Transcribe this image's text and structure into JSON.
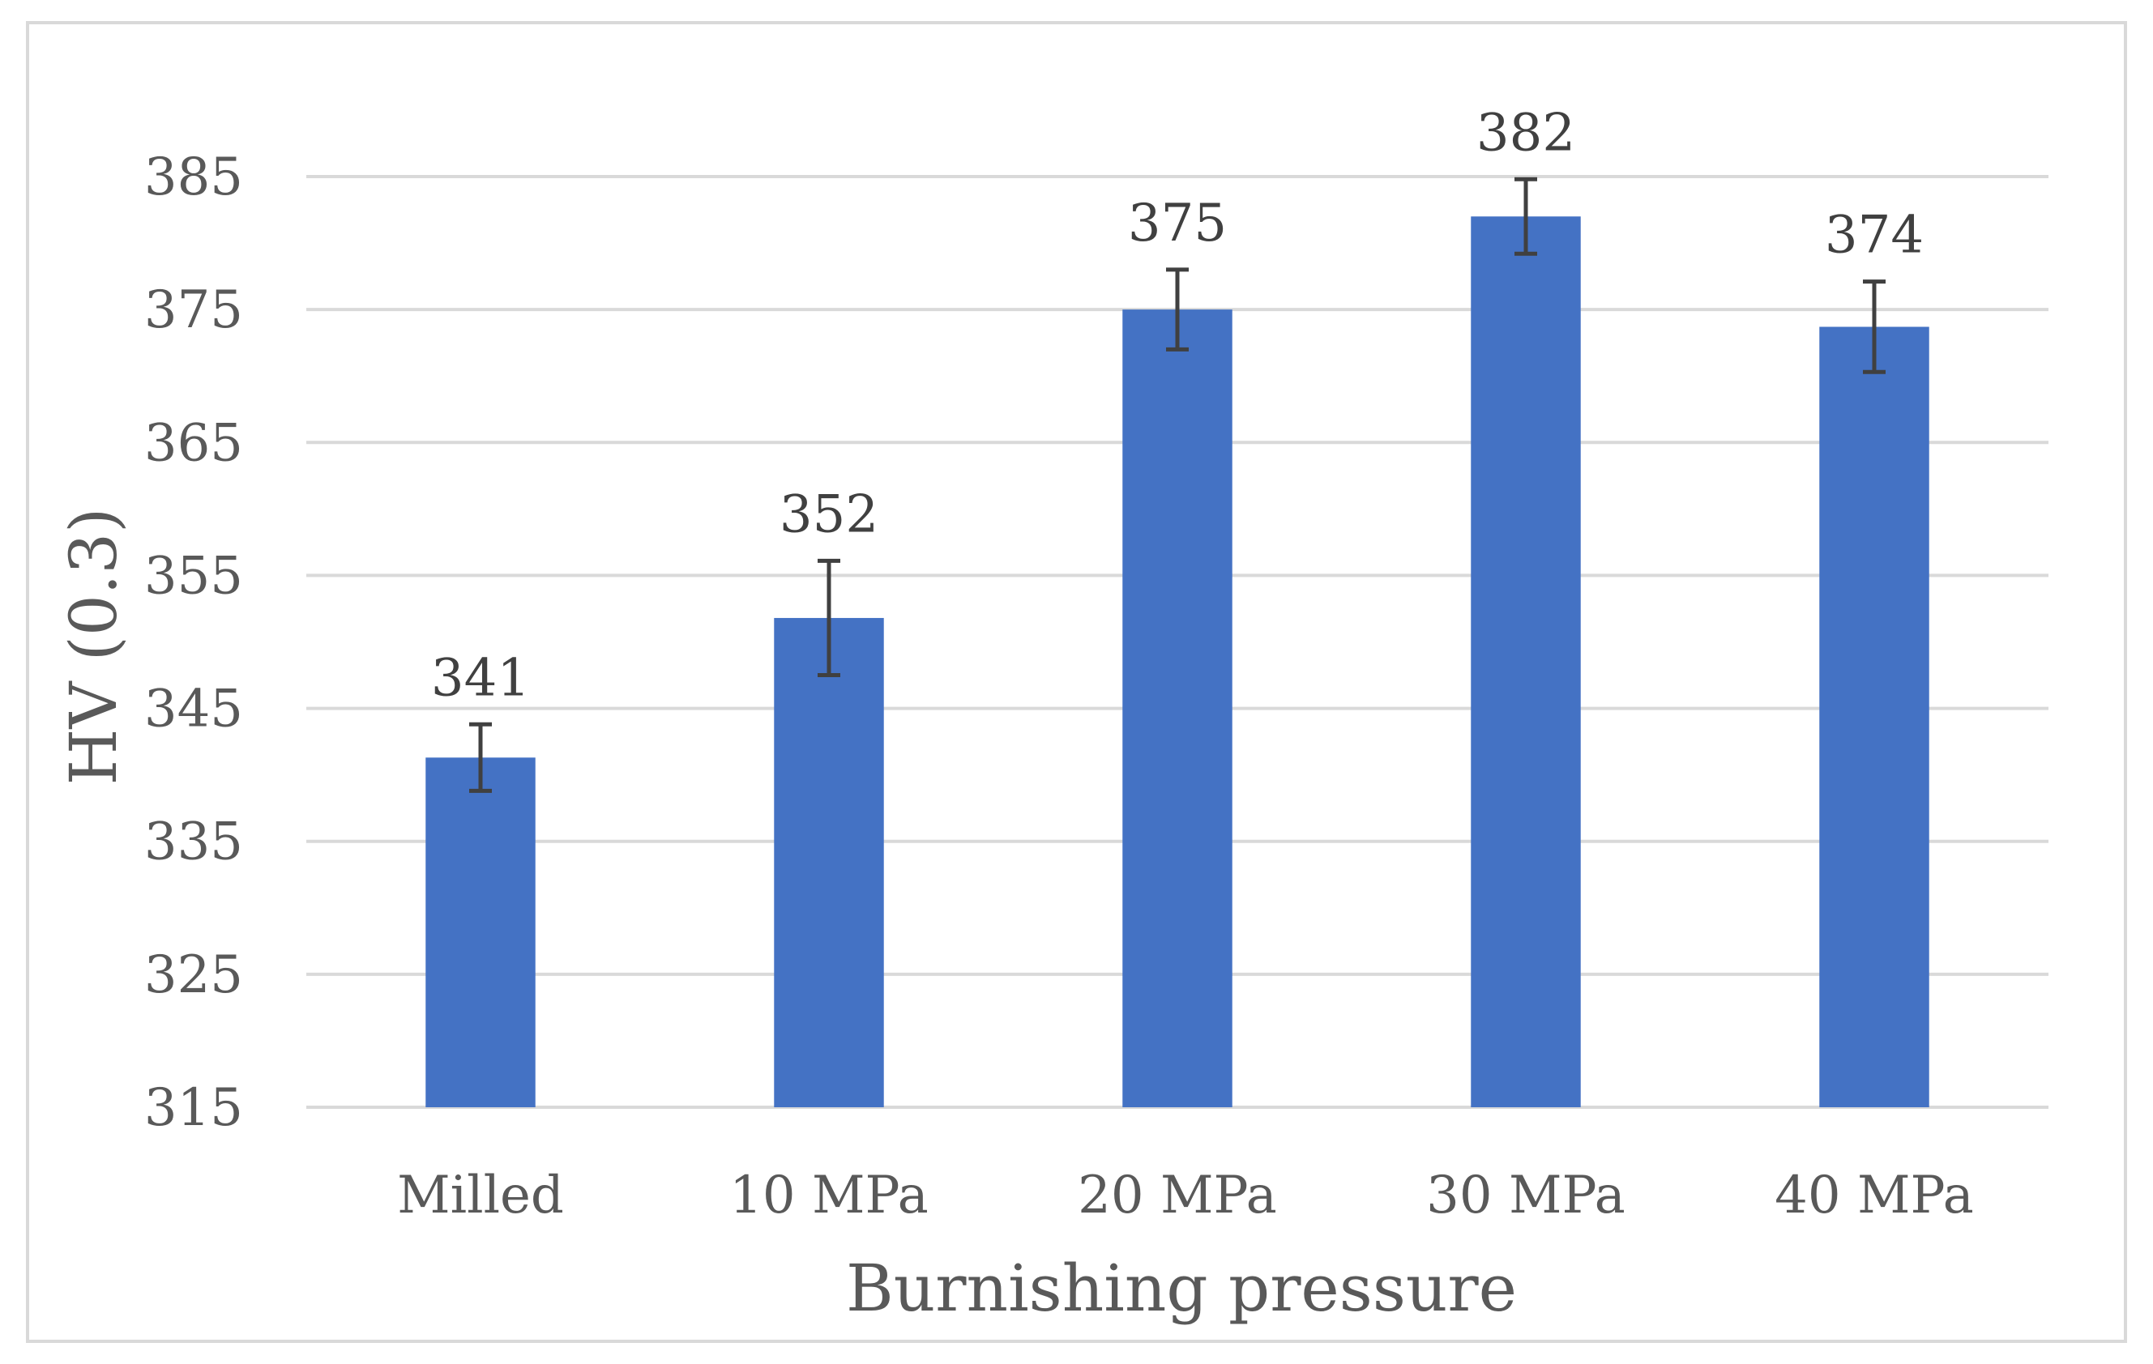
{
  "chart_data": {
    "type": "bar",
    "title": "",
    "xlabel": "Burnishing pressure",
    "ylabel": "HV (0.3)",
    "categories": [
      "Milled",
      "10 MPa",
      "20 MPa",
      "30 MPa",
      "40 MPa"
    ],
    "values": [
      341.3,
      351.8,
      375.0,
      382.0,
      373.7
    ],
    "data_labels": [
      "341",
      "352",
      "375",
      "382",
      "374"
    ],
    "error_bars": [
      2.5,
      4.3,
      3.0,
      2.8,
      3.4
    ],
    "ylim": [
      315,
      385
    ],
    "yticks": [
      315,
      325,
      335,
      345,
      355,
      365,
      375,
      385
    ],
    "ytick_labels": [
      "315",
      "325",
      "335",
      "345",
      "355",
      "365",
      "375",
      "385"
    ],
    "grid": true,
    "legend": "none",
    "colors": {
      "bar": "#4472C4",
      "error_bar": "#404040",
      "grid": "#d9d9d9",
      "frame": "#d9d9d9",
      "text": "#595959"
    }
  }
}
